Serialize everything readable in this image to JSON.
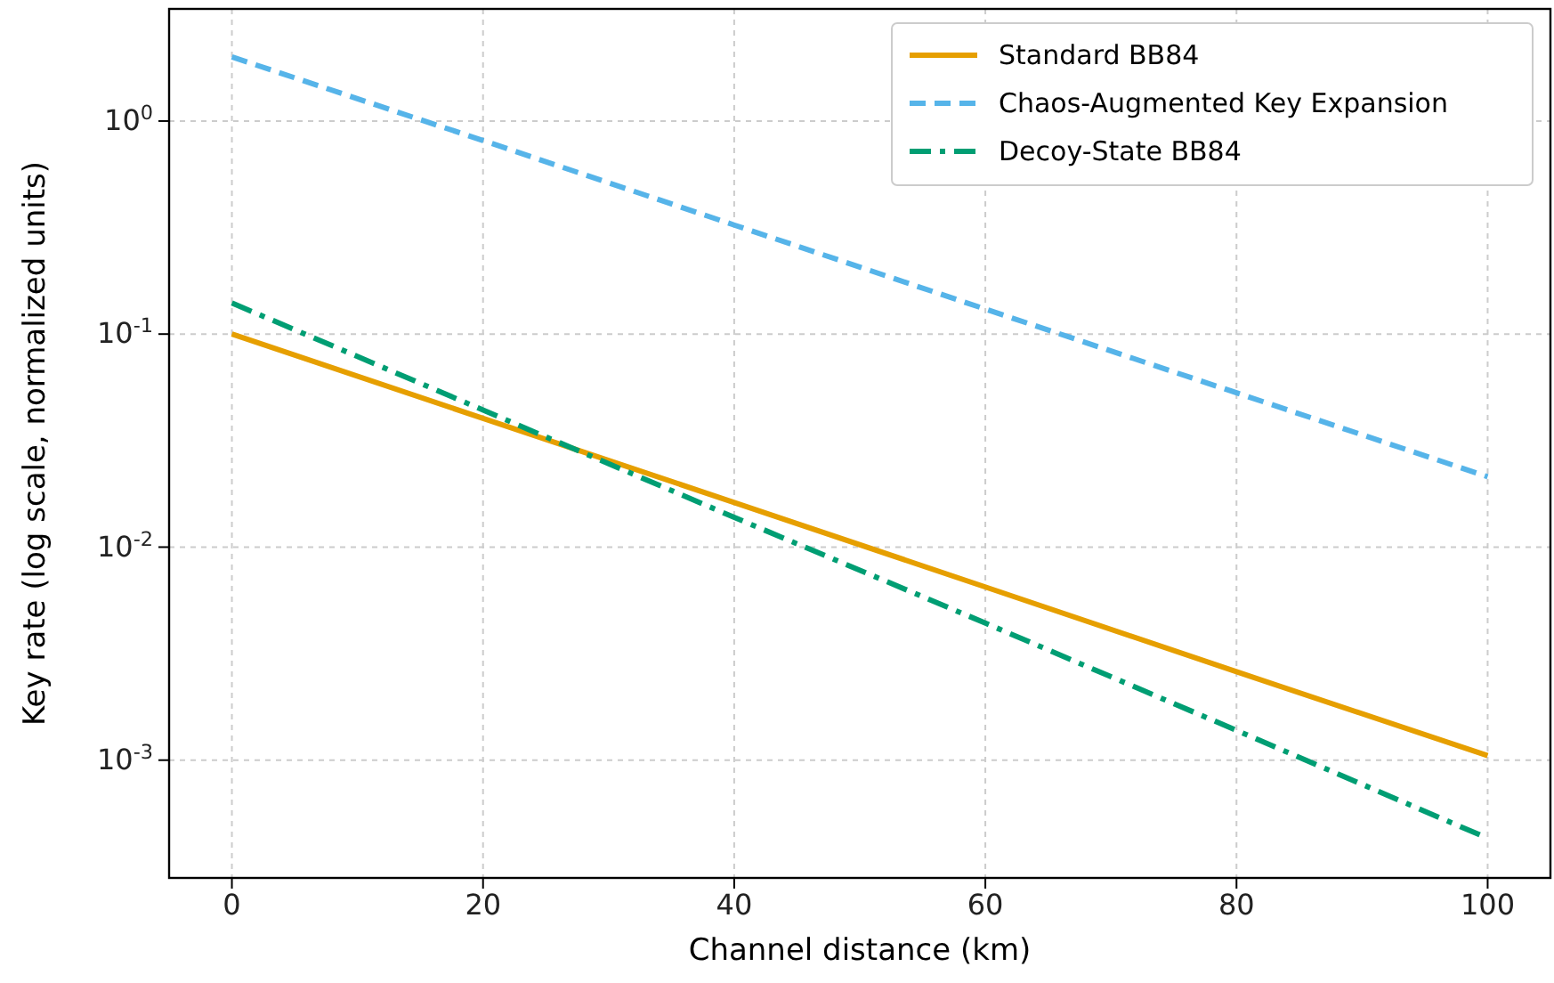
{
  "chart_data": {
    "type": "line",
    "xlabel": "Channel distance (km)",
    "ylabel": "Key rate (log scale, normalized units)",
    "log": "y",
    "grid": true,
    "legend": "top right",
    "xlim": [
      -5,
      105
    ],
    "xticks": [
      0,
      20,
      40,
      60,
      80,
      100
    ],
    "ylim": [
      0.00028,
      3.36
    ],
    "yticks": [
      {
        "value": 1,
        "label": "10$^{0}$"
      },
      {
        "value": 0.1,
        "label": "10$^{-1}$"
      },
      {
        "value": 0.01,
        "label": "10$^{-2}$"
      },
      {
        "value": 0.001,
        "label": "10$^{-3}$"
      }
    ],
    "x": [
      0,
      20,
      40,
      60,
      80,
      100
    ],
    "series": [
      {
        "name": "Standard BB84",
        "color": "#e69f00",
        "line_style": "solid",
        "values": [
          0.1,
          0.0402,
          0.0162,
          0.0065,
          0.0026,
          0.00105
        ]
      },
      {
        "name": "Chaos-Augmented Key Expansion",
        "color": "#56b4e9",
        "line_style": "dashed",
        "values": [
          2.0,
          0.81,
          0.325,
          0.131,
          0.053,
          0.0214
        ]
      },
      {
        "name": "Decoy-State BB84",
        "color": "#009e73",
        "line_style": "dashdot",
        "values": [
          0.14,
          0.044,
          0.0138,
          0.0044,
          0.00138,
          0.00043
        ]
      }
    ]
  }
}
